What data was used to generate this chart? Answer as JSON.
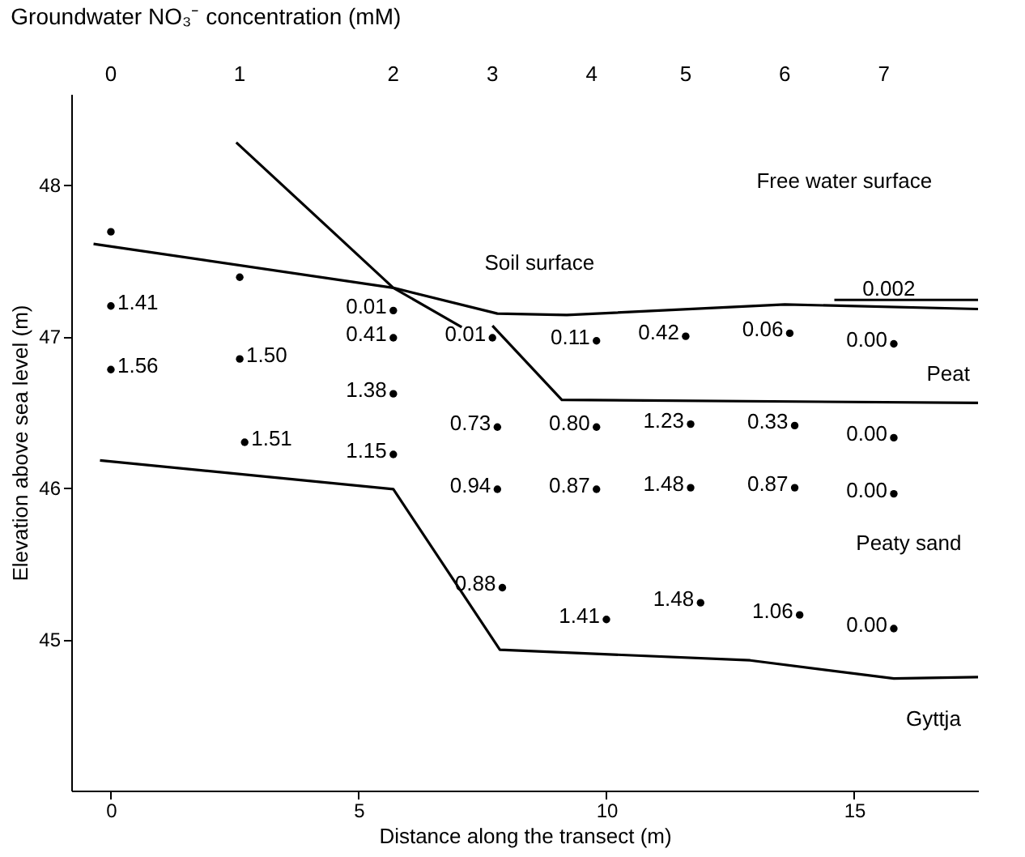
{
  "chart_data": {
    "type": "scatter",
    "title": "Groundwater NO₃⁻ concentration (mM)",
    "xlabel": "Distance along the transect (m)",
    "ylabel": "Elevation above sea level (m)",
    "xlim": [
      -0.8,
      17.5
    ],
    "ylim": [
      44.0,
      48.6
    ],
    "xticks": [
      0,
      5,
      10,
      15
    ],
    "yticks": [
      45,
      46,
      47,
      48
    ],
    "grid": false,
    "legend": false,
    "series": [
      {
        "color": "#000000",
        "marker": "circle",
        "x": [
          0,
          0,
          0,
          2.6,
          2.6,
          2.7,
          5.7,
          5.7,
          5.7,
          5.7,
          7.7,
          7.8,
          7.8,
          7.9,
          9.8,
          9.8,
          9.8,
          10.0,
          11.6,
          11.7,
          11.7,
          11.9,
          13.7,
          13.8,
          13.8,
          13.9,
          15.8,
          15.8,
          15.8,
          15.8
        ],
        "values": [
          47.69,
          47.2,
          46.78,
          47.39,
          46.85,
          46.3,
          47.17,
          46.99,
          46.62,
          46.22,
          46.99,
          46.4,
          45.99,
          45.34,
          46.97,
          46.4,
          45.99,
          45.13,
          47.0,
          46.42,
          46.0,
          45.24,
          47.02,
          46.41,
          46.0,
          45.16,
          46.95,
          46.33,
          45.96,
          45.07
        ]
      },
      {
        "type": "line",
        "color": "#000000",
        "x": [
          -0.35,
          5.7,
          7.08
        ],
        "values": [
          47.61,
          47.32,
          47.06
        ]
      },
      {
        "type": "line",
        "color": "#000000",
        "x": [
          2.53,
          5.7,
          7.8,
          9.2,
          13.6,
          17.5
        ],
        "values": [
          48.28,
          47.32,
          47.15,
          47.14,
          47.21,
          47.18
        ]
      },
      {
        "type": "line",
        "color": "#000000",
        "x": [
          14.6,
          17.5
        ],
        "values": [
          47.24,
          47.24
        ]
      },
      {
        "type": "line",
        "color": "#000000",
        "x": [
          7.7,
          9.1,
          17.5
        ],
        "values": [
          47.07,
          46.58,
          46.56
        ]
      },
      {
        "type": "line",
        "color": "#000000",
        "x": [
          -0.22,
          5.7,
          7.85,
          12.9,
          15.8,
          17.5
        ],
        "values": [
          46.18,
          45.99,
          44.93,
          44.86,
          44.74,
          44.75
        ]
      }
    ],
    "annotations": [
      {
        "text": "1.41",
        "x": 0,
        "y": 47.2
      },
      {
        "text": "1.56",
        "x": 0,
        "y": 46.78
      },
      {
        "text": "1.50",
        "x": 2.6,
        "y": 46.85
      },
      {
        "text": "1.51",
        "x": 2.7,
        "y": 46.3
      },
      {
        "text": "0.01",
        "x": 5.7,
        "y": 47.17
      },
      {
        "text": "0.41",
        "x": 5.7,
        "y": 46.99
      },
      {
        "text": "1.38",
        "x": 5.7,
        "y": 46.62
      },
      {
        "text": "1.15",
        "x": 5.7,
        "y": 46.22
      },
      {
        "text": "0.01",
        "x": 7.7,
        "y": 46.99
      },
      {
        "text": "0.73",
        "x": 7.8,
        "y": 46.4
      },
      {
        "text": "0.94",
        "x": 7.8,
        "y": 45.99
      },
      {
        "text": "0.88",
        "x": 7.9,
        "y": 45.34
      },
      {
        "text": "0.11",
        "x": 9.8,
        "y": 46.97
      },
      {
        "text": "0.80",
        "x": 9.8,
        "y": 46.4
      },
      {
        "text": "0.87",
        "x": 9.8,
        "y": 45.99
      },
      {
        "text": "1.41",
        "x": 10.0,
        "y": 45.13
      },
      {
        "text": "0.42",
        "x": 11.6,
        "y": 47.0
      },
      {
        "text": "1.23",
        "x": 11.7,
        "y": 46.42
      },
      {
        "text": "1.48",
        "x": 11.7,
        "y": 46.0
      },
      {
        "text": "1.48",
        "x": 11.9,
        "y": 45.24
      },
      {
        "text": "0.06",
        "x": 13.7,
        "y": 47.02
      },
      {
        "text": "0.33",
        "x": 13.8,
        "y": 46.41
      },
      {
        "text": "0.87",
        "x": 13.8,
        "y": 46.0
      },
      {
        "text": "1.06",
        "x": 13.9,
        "y": 45.16
      },
      {
        "text": "0.00",
        "x": 15.8,
        "y": 46.95
      },
      {
        "text": "0.00",
        "x": 15.8,
        "y": 46.33
      },
      {
        "text": "0.00",
        "x": 15.8,
        "y": 45.96
      },
      {
        "text": "0.00",
        "x": 15.8,
        "y": 45.07
      },
      "0",
      "1",
      "2",
      "3",
      "4",
      "5",
      "6",
      "7",
      "Soil surface",
      "Free water surface",
      "0.002",
      "Peat",
      "Peaty sand",
      "Gyttja"
    ]
  }
}
